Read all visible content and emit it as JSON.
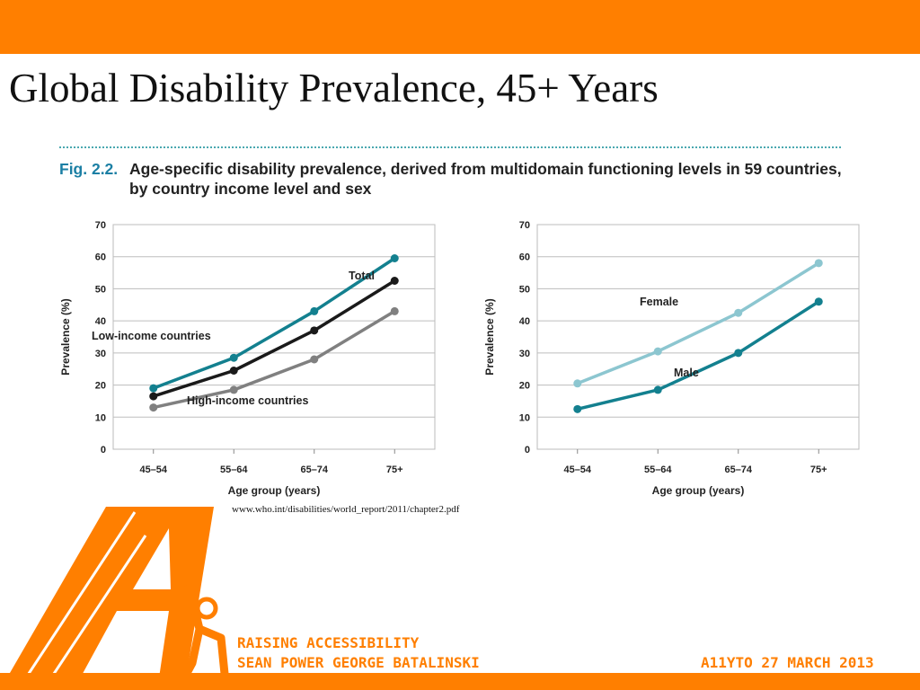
{
  "theme": {
    "accent": "#ff7f00",
    "caption_blue": "#1b7fa4",
    "total_color": "#1a1a1a",
    "low_income_color": "#13808f",
    "high_income_color": "#808080",
    "female_color": "#8cc6d0",
    "male_color": "#13808f"
  },
  "slide": {
    "title": "Global Disability Prevalence, 45+ Years",
    "source_url": "www.who.int/disabilities/world_report/2011/chapter2.pdf"
  },
  "figure": {
    "label": "Fig. 2.2.",
    "caption": "Age-specific disability prevalence, derived from multidomain functioning levels in 59 countries, by country income level and sex"
  },
  "footer": {
    "line1": "RAISING ACCESSIBILITY",
    "line2": "SEAN POWER GEORGE BATALINSKI",
    "right": "A11YTO 27 MARCH 2013"
  },
  "logo": {
    "icon": "accessibility-a-logo-icon"
  },
  "chart_data": [
    {
      "type": "line",
      "categories": [
        "45–54",
        "55–64",
        "65–74",
        "75+"
      ],
      "xlabel": "Age group (years)",
      "ylabel": "Prevalence (%)",
      "ylim": [
        0,
        70
      ],
      "yticks": [
        0,
        10,
        20,
        30,
        40,
        50,
        60,
        70
      ],
      "grid": true,
      "series": [
        {
          "name": "Low-income countries",
          "values": [
            19,
            28.5,
            43,
            59.5
          ],
          "color": "#13808f"
        },
        {
          "name": "Total",
          "values": [
            16.5,
            24.5,
            37,
            52.5
          ],
          "color": "#1a1a1a"
        },
        {
          "name": "High-income countries",
          "values": [
            13,
            18.5,
            28,
            43
          ],
          "color": "#808080"
        }
      ]
    },
    {
      "type": "line",
      "categories": [
        "45–54",
        "55–64",
        "65–74",
        "75+"
      ],
      "xlabel": "Age group (years)",
      "ylabel": "Prevalence (%)",
      "ylim": [
        0,
        70
      ],
      "yticks": [
        0,
        10,
        20,
        30,
        40,
        50,
        60,
        70
      ],
      "grid": true,
      "series": [
        {
          "name": "Female",
          "values": [
            20.5,
            30.5,
            42.5,
            58
          ],
          "color": "#8cc6d0"
        },
        {
          "name": "Male",
          "values": [
            12.5,
            18.5,
            30,
            46
          ],
          "color": "#13808f"
        }
      ]
    }
  ]
}
